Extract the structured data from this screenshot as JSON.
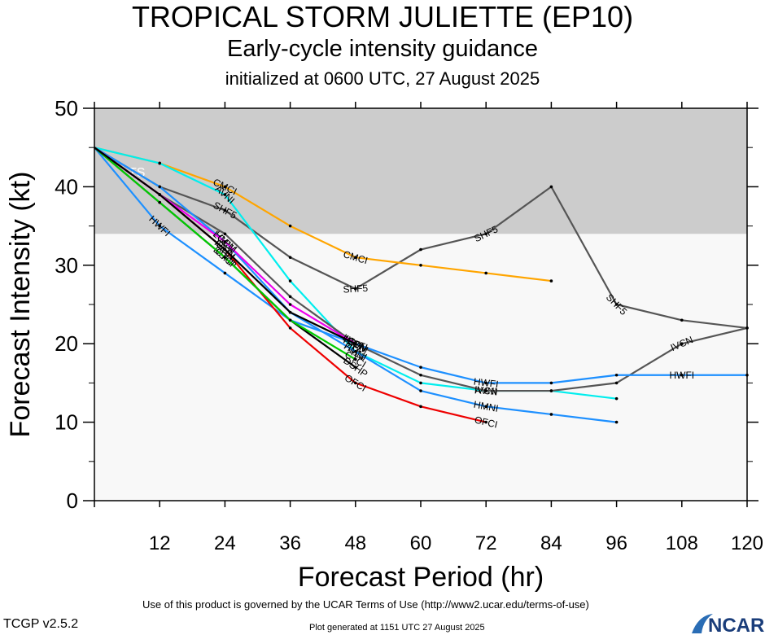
{
  "title": "TROPICAL STORM JULIETTE (EP10)",
  "subtitle": "Early-cycle intensity guidance",
  "init_line": "initialized at 0600 UTC, 27 August 2025",
  "terms": "Use of this product is governed by the UCAR Terms of Use (http://www2.ucar.edu/terms-of-use)",
  "version": "TCGP v2.5.2",
  "generated": "Plot generated at 1151 UTC   27 August 2025",
  "logo_text": "NCAR",
  "chart_data": {
    "type": "line",
    "xlabel": "Forecast Period (hr)",
    "ylabel": "Forecast Intensity (kt)",
    "xlim": [
      0,
      120
    ],
    "ylim": [
      0,
      50
    ],
    "xticks": [
      "12",
      "24",
      "36",
      "48",
      "60",
      "72",
      "84",
      "96",
      "108",
      "120"
    ],
    "yticks": [
      "0",
      "10",
      "20",
      "30",
      "40",
      "50"
    ],
    "band": {
      "label": "TS",
      "from": 34,
      "to": 50,
      "color": "#cccccc"
    },
    "plot_bg": "#f8f8f8",
    "series": [
      {
        "name": "SHF5",
        "color": "#555555",
        "x": [
          0,
          12,
          24,
          36,
          48,
          60,
          72,
          84,
          96,
          108,
          120
        ],
        "y": [
          45,
          40,
          37,
          31,
          27,
          32,
          34,
          40,
          25,
          23,
          22
        ],
        "labels": [
          {
            "at": 24,
            "text": "SHF5"
          },
          {
            "at": 48,
            "text": "SHF5"
          },
          {
            "at": 72,
            "text": "SHF5"
          },
          {
            "at": 96,
            "text": "SHF5"
          }
        ]
      },
      {
        "name": "CMCI",
        "color": "#ffa500",
        "x": [
          0,
          12,
          24,
          36,
          48,
          60,
          72,
          84
        ],
        "y": [
          45,
          43,
          40,
          35,
          31,
          30,
          29,
          28
        ],
        "labels": [
          {
            "at": 24,
            "text": "CMCI"
          },
          {
            "at": 48,
            "text": "CMCI"
          }
        ]
      },
      {
        "name": "AVNI",
        "color": "#00eeee",
        "x": [
          0,
          12,
          24,
          36,
          48,
          60,
          72,
          84,
          96
        ],
        "y": [
          45,
          43,
          39,
          28,
          19,
          15,
          14,
          14,
          13
        ],
        "labels": [
          {
            "at": 24,
            "text": "AVNI"
          },
          {
            "at": 48,
            "text": "AVNI"
          },
          {
            "at": 72,
            "text": "AVNI"
          }
        ]
      },
      {
        "name": "IVCN",
        "color": "#555555",
        "x": [
          0,
          12,
          24,
          36,
          48,
          60,
          72,
          84,
          96,
          108,
          120
        ],
        "y": [
          45,
          39,
          34,
          26,
          20,
          16,
          14,
          14,
          15,
          20,
          22
        ],
        "labels": [
          {
            "at": 48,
            "text": "IVCN"
          },
          {
            "at": 72,
            "text": "IVCN"
          },
          {
            "at": 108,
            "text": "IVCN"
          }
        ]
      },
      {
        "name": "HWFI",
        "color": "#1e90ff",
        "x": [
          0,
          12,
          24,
          36,
          48,
          60,
          72,
          84,
          96,
          108,
          120
        ],
        "y": [
          45,
          35,
          29,
          23,
          20,
          17,
          15,
          15,
          16,
          16,
          16
        ],
        "labels": [
          {
            "at": 12,
            "text": "HWFI"
          },
          {
            "at": 48,
            "text": "HWFI"
          },
          {
            "at": 72,
            "text": "HWFI"
          },
          {
            "at": 108,
            "text": "HWFI"
          }
        ]
      },
      {
        "name": "HMNI",
        "color": "#1e90ff",
        "x": [
          0,
          12,
          24,
          36,
          48,
          60,
          72,
          84,
          96
        ],
        "y": [
          45,
          40,
          33,
          24,
          19,
          14,
          12,
          11,
          10
        ],
        "labels": [
          {
            "at": 24,
            "text": "HMNI"
          },
          {
            "at": 48,
            "text": "HMNI"
          },
          {
            "at": 72,
            "text": "HMNI"
          }
        ]
      },
      {
        "name": "OFCI",
        "color": "#ee0000",
        "x": [
          0,
          12,
          24,
          36,
          48,
          60,
          72
        ],
        "y": [
          45,
          39,
          32,
          22,
          15,
          12,
          10
        ],
        "labels": [
          {
            "at": 24,
            "text": "OFCI"
          },
          {
            "at": 48,
            "text": "OFCI"
          },
          {
            "at": 72,
            "text": "OFCI"
          }
        ]
      },
      {
        "name": "DSHP",
        "color": "#000000",
        "x": [
          0,
          12,
          24,
          36,
          48
        ],
        "y": [
          45,
          38,
          31,
          23,
          17
        ],
        "labels": [
          {
            "at": 24,
            "text": "DSHP"
          },
          {
            "at": 48,
            "text": "DSHP"
          }
        ]
      },
      {
        "name": "LGEM",
        "color": "#ee00ee",
        "x": [
          0,
          12,
          24,
          36,
          48
        ],
        "y": [
          45,
          39,
          33,
          25,
          20
        ],
        "labels": [
          {
            "at": 24,
            "text": "LGEM"
          },
          {
            "at": 48,
            "text": "LGEM"
          }
        ]
      },
      {
        "name": "CTCI",
        "color": "#00cc00",
        "x": [
          0,
          12,
          24,
          36,
          48
        ],
        "y": [
          45,
          38,
          31,
          23,
          18
        ],
        "labels": [
          {
            "at": 24,
            "text": "CTCI"
          },
          {
            "at": 48,
            "text": "CTCI"
          }
        ]
      },
      {
        "name": "ICON",
        "color": "#000000",
        "x": [
          0,
          12,
          24,
          36,
          48
        ],
        "y": [
          45,
          39,
          32,
          24,
          20
        ],
        "labels": [
          {
            "at": 24,
            "text": "ICON"
          },
          {
            "at": 48,
            "text": "ICON"
          }
        ]
      }
    ]
  }
}
